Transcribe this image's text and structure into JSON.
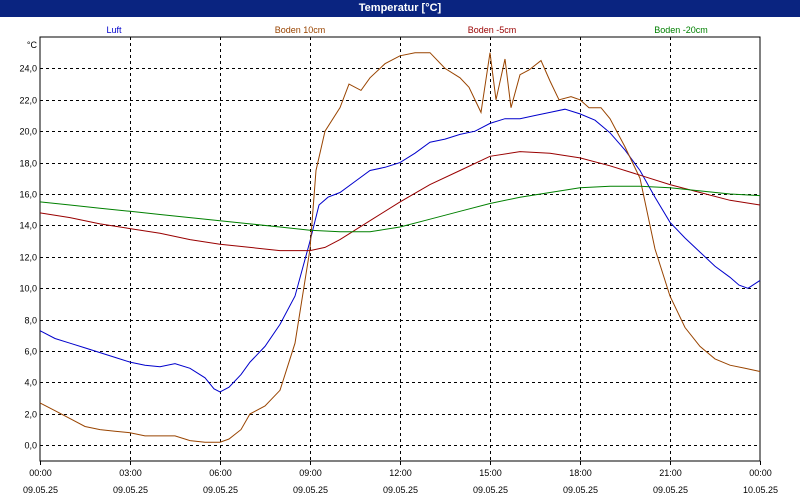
{
  "window": {
    "title": "Temperatur [°C]"
  },
  "chart_data": {
    "type": "line",
    "title": "Temperatur [°C]",
    "ylabel": "°C",
    "ylim": [
      -1.0,
      26.0
    ],
    "xlim": [
      0,
      24
    ],
    "grid": true,
    "y_ticks": [
      "0,0",
      "2,0",
      "4,0",
      "6,0",
      "8,0",
      "10,0",
      "12,0",
      "14,0",
      "16,0",
      "18,0",
      "20,0",
      "22,0",
      "24,0"
    ],
    "y_tick_values": [
      0,
      2,
      4,
      6,
      8,
      10,
      12,
      14,
      16,
      18,
      20,
      22,
      24
    ],
    "x_ticks": [
      {
        "time": "00:00",
        "date": "09.05.25",
        "hour": 0
      },
      {
        "time": "03:00",
        "date": "09.05.25",
        "hour": 3
      },
      {
        "time": "06:00",
        "date": "09.05.25",
        "hour": 6
      },
      {
        "time": "09:00",
        "date": "09.05.25",
        "hour": 9
      },
      {
        "time": "12:00",
        "date": "09.05.25",
        "hour": 12
      },
      {
        "time": "15:00",
        "date": "09.05.25",
        "hour": 15
      },
      {
        "time": "18:00",
        "date": "09.05.25",
        "hour": 18
      },
      {
        "time": "21:00",
        "date": "09.05.25",
        "hour": 21
      },
      {
        "time": "00:00",
        "date": "10.05.25",
        "hour": 24
      }
    ],
    "series": [
      {
        "name": "Luft",
        "color": "#0000cc",
        "x": [
          0,
          0.5,
          1,
          1.5,
          2,
          2.5,
          3,
          3.5,
          4,
          4.5,
          5,
          5.5,
          5.8,
          6,
          6.3,
          6.7,
          7,
          7.5,
          8,
          8.5,
          9,
          9.3,
          9.6,
          10,
          10.5,
          11,
          11.5,
          12,
          12.5,
          13,
          13.5,
          14,
          14.5,
          15,
          15.5,
          16,
          16.5,
          17,
          17.5,
          18,
          18.5,
          19,
          19.5,
          20,
          20.5,
          21,
          21.5,
          22,
          22.5,
          23,
          23.3,
          23.6,
          24
        ],
        "values": [
          7.3,
          6.8,
          6.5,
          6.2,
          5.9,
          5.6,
          5.3,
          5.1,
          5.0,
          5.2,
          4.9,
          4.3,
          3.6,
          3.4,
          3.7,
          4.5,
          5.3,
          6.3,
          7.7,
          9.5,
          13.0,
          15.3,
          15.8,
          16.1,
          16.8,
          17.5,
          17.7,
          18.0,
          18.6,
          19.3,
          19.5,
          19.8,
          20.0,
          20.5,
          20.8,
          20.8,
          21.0,
          21.2,
          21.4,
          21.1,
          20.7,
          19.9,
          18.8,
          17.5,
          15.8,
          14.2,
          13.2,
          12.3,
          11.4,
          10.7,
          10.2,
          10.0,
          10.5
        ]
      },
      {
        "name": "Boden 10cm",
        "color": "#994400",
        "x": [
          0,
          0.5,
          1,
          1.5,
          2,
          2.5,
          3,
          3.5,
          4,
          4.5,
          5,
          5.5,
          6,
          6.3,
          6.7,
          7,
          7.5,
          8,
          8.5,
          9,
          9.2,
          9.5,
          10,
          10.3,
          10.7,
          11,
          11.5,
          12,
          12.5,
          13,
          13.5,
          14,
          14.3,
          14.7,
          15,
          15.2,
          15.5,
          15.7,
          16,
          16.3,
          16.7,
          17,
          17.3,
          17.7,
          18,
          18.3,
          18.7,
          19,
          19.5,
          20,
          20.5,
          21,
          21.5,
          22,
          22.5,
          23,
          23.5,
          24
        ],
        "values": [
          2.7,
          2.2,
          1.7,
          1.2,
          1.0,
          0.9,
          0.8,
          0.6,
          0.6,
          0.6,
          0.3,
          0.2,
          0.2,
          0.4,
          1.0,
          2.0,
          2.5,
          3.5,
          6.5,
          12.5,
          17.5,
          20.0,
          21.5,
          23.0,
          22.6,
          23.4,
          24.3,
          24.8,
          25.0,
          25.0,
          24.0,
          23.4,
          22.8,
          21.2,
          25.0,
          22.0,
          24.6,
          21.5,
          23.6,
          23.9,
          24.5,
          23.2,
          22.0,
          22.2,
          22.0,
          21.5,
          21.5,
          20.8,
          19.0,
          17.0,
          12.5,
          9.5,
          7.5,
          6.3,
          5.5,
          5.1,
          4.9,
          4.7
        ]
      },
      {
        "name": "Boden -5cm",
        "color": "#990000",
        "x": [
          0,
          1,
          2,
          3,
          4,
          5,
          6,
          7,
          8,
          9,
          9.5,
          10,
          11,
          12,
          13,
          14,
          15,
          16,
          17,
          18,
          19,
          20,
          21,
          22,
          23,
          24
        ],
        "values": [
          14.8,
          14.5,
          14.1,
          13.8,
          13.5,
          13.1,
          12.8,
          12.6,
          12.4,
          12.4,
          12.6,
          13.1,
          14.3,
          15.5,
          16.6,
          17.5,
          18.4,
          18.7,
          18.6,
          18.3,
          17.8,
          17.2,
          16.6,
          16.1,
          15.6,
          15.3
        ]
      },
      {
        "name": "Boden -20cm",
        "color": "#008000",
        "x": [
          0,
          1,
          2,
          3,
          4,
          5,
          6,
          7,
          8,
          9,
          10,
          11,
          12,
          13,
          14,
          15,
          16,
          17,
          18,
          19,
          20,
          21,
          22,
          23,
          24
        ],
        "values": [
          15.5,
          15.3,
          15.1,
          14.9,
          14.7,
          14.5,
          14.3,
          14.1,
          13.9,
          13.7,
          13.6,
          13.6,
          13.9,
          14.4,
          14.9,
          15.4,
          15.8,
          16.1,
          16.4,
          16.5,
          16.5,
          16.4,
          16.2,
          16.0,
          15.9
        ]
      }
    ]
  }
}
